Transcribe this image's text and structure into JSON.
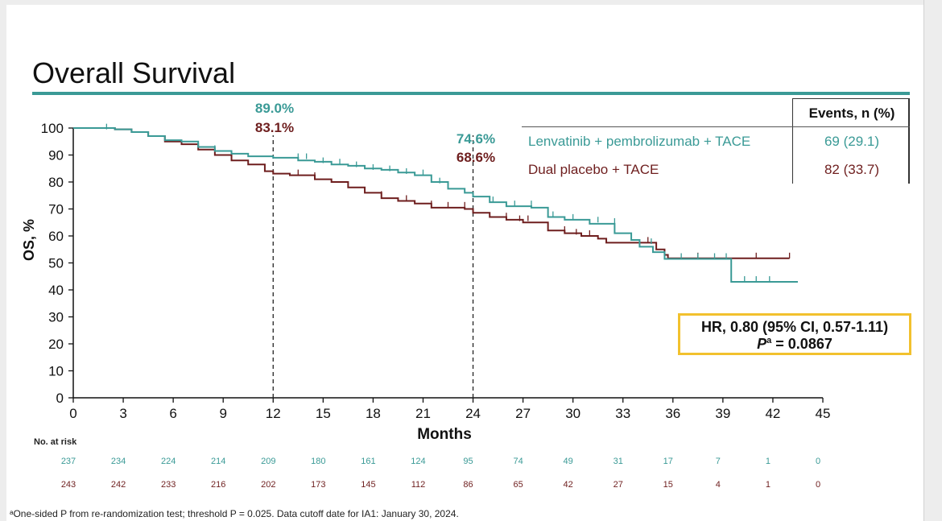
{
  "page_title": "Overall Survival",
  "colors": {
    "lenvatinib": "#3a9a96",
    "placebo": "#6e1e1e",
    "accent_rule": "#3a9a96",
    "hr_box": "#f2c12e"
  },
  "legend": {
    "header": "Events, n (%)",
    "rows": [
      {
        "name": "Lenvatinib + pembrolizumab + TACE",
        "events": "69 (29.1)"
      },
      {
        "name": "Dual placebo + TACE",
        "events": "82 (33.7)"
      }
    ]
  },
  "annotations": {
    "m12_a": "89.0%",
    "m12_b": "83.1%",
    "m24_a": "74.6%",
    "m24_b": "68.6%"
  },
  "hr_box": {
    "line1": "HR, 0.80 (95% CI, 0.57-1.11)",
    "p_sup": "a",
    "p_value": " = 0.0867"
  },
  "risk_table": {
    "title": "No. at risk",
    "lenvatinib": [
      "237",
      "234",
      "224",
      "214",
      "209",
      "180",
      "161",
      "124",
      "95",
      "74",
      "49",
      "31",
      "17",
      "7",
      "1",
      "0"
    ],
    "placebo": [
      "243",
      "242",
      "233",
      "216",
      "202",
      "173",
      "145",
      "112",
      "86",
      "65",
      "42",
      "27",
      "15",
      "4",
      "1",
      "0"
    ]
  },
  "footnote": "ᵃOne-sided P from re-randomization test; threshold P = 0.025. Data cutoff date for IA1: January 30, 2024.",
  "chart_data": {
    "type": "line",
    "title": "Overall Survival",
    "xlabel": "Months",
    "ylabel": "OS, %",
    "xlim": [
      0,
      45
    ],
    "ylim": [
      0,
      100
    ],
    "xticks": [
      0,
      3,
      6,
      9,
      12,
      15,
      18,
      21,
      24,
      27,
      30,
      33,
      36,
      39,
      42,
      45
    ],
    "yticks": [
      0,
      10,
      20,
      30,
      40,
      50,
      60,
      70,
      80,
      90,
      100
    ],
    "reference_lines_x": [
      12,
      24
    ],
    "series": [
      {
        "name": "Lenvatinib + pembrolizumab + TACE",
        "step": [
          [
            0,
            100
          ],
          [
            1.5,
            100
          ],
          [
            2.5,
            99.5
          ],
          [
            3.5,
            98.5
          ],
          [
            4.5,
            97
          ],
          [
            5.5,
            95.5
          ],
          [
            6.5,
            95
          ],
          [
            7.5,
            93
          ],
          [
            8.5,
            91.5
          ],
          [
            9.5,
            90.5
          ],
          [
            10.5,
            89.5
          ],
          [
            12,
            89
          ],
          [
            13.5,
            88
          ],
          [
            14.5,
            87.5
          ],
          [
            15.5,
            86.5
          ],
          [
            16.5,
            86
          ],
          [
            17.5,
            85
          ],
          [
            18.5,
            84.5
          ],
          [
            19.5,
            83.5
          ],
          [
            20.5,
            82.5
          ],
          [
            21.5,
            80
          ],
          [
            22.5,
            77.5
          ],
          [
            23.5,
            76
          ],
          [
            24,
            74.6
          ],
          [
            25,
            72.5
          ],
          [
            26,
            71
          ],
          [
            27.5,
            70.5
          ],
          [
            28.5,
            67
          ],
          [
            29.5,
            66
          ],
          [
            31,
            64.5
          ],
          [
            32.5,
            61
          ],
          [
            33.5,
            58.5
          ],
          [
            34,
            56
          ],
          [
            34.8,
            54
          ],
          [
            35.5,
            51.5
          ],
          [
            39.5,
            51.5
          ],
          [
            39.5,
            43
          ],
          [
            43.5,
            43
          ]
        ],
        "censors": [
          [
            2,
            99.5
          ],
          [
            8.5,
            91.5
          ],
          [
            13.5,
            88.5
          ],
          [
            14,
            88.5
          ],
          [
            15,
            87
          ],
          [
            16,
            86.5
          ],
          [
            17,
            85.5
          ],
          [
            18,
            84.5
          ],
          [
            19,
            84
          ],
          [
            20,
            83
          ],
          [
            21,
            82.5
          ],
          [
            22,
            79.5
          ],
          [
            25.2,
            72.5
          ],
          [
            26.5,
            71
          ],
          [
            27.5,
            71
          ],
          [
            28.8,
            67
          ],
          [
            30,
            66
          ],
          [
            31.5,
            65
          ],
          [
            32.5,
            64.5
          ],
          [
            34.7,
            57
          ],
          [
            36.5,
            51.5
          ],
          [
            37.5,
            51.5
          ],
          [
            38.5,
            51.5
          ],
          [
            39.2,
            51.5
          ],
          [
            40.3,
            43
          ],
          [
            41,
            43
          ],
          [
            41.8,
            43
          ]
        ]
      },
      {
        "name": "Dual placebo + TACE",
        "step": [
          [
            0,
            100
          ],
          [
            2.5,
            99.5
          ],
          [
            3.5,
            98.5
          ],
          [
            4.5,
            97
          ],
          [
            5.5,
            95
          ],
          [
            6.5,
            94
          ],
          [
            7.5,
            92
          ],
          [
            8.5,
            90
          ],
          [
            9.5,
            88
          ],
          [
            10.5,
            86.5
          ],
          [
            11.5,
            84
          ],
          [
            12,
            83.1
          ],
          [
            13,
            82.5
          ],
          [
            14.5,
            81
          ],
          [
            15.5,
            80
          ],
          [
            16.5,
            78
          ],
          [
            17.5,
            76
          ],
          [
            18.5,
            74
          ],
          [
            19.5,
            73
          ],
          [
            20.5,
            72
          ],
          [
            21.5,
            70.5
          ],
          [
            23.5,
            70
          ],
          [
            24,
            68.6
          ],
          [
            25,
            67
          ],
          [
            26,
            66
          ],
          [
            27,
            65
          ],
          [
            28.5,
            62
          ],
          [
            29.5,
            61
          ],
          [
            30.5,
            60
          ],
          [
            31.5,
            59
          ],
          [
            32,
            57.5
          ],
          [
            35,
            55
          ],
          [
            35.5,
            53
          ],
          [
            35.7,
            51.7
          ],
          [
            43,
            51.7
          ]
        ],
        "censors": [
          [
            13.5,
            82.5
          ],
          [
            14.5,
            81.5
          ],
          [
            18.5,
            74.5
          ],
          [
            20,
            73
          ],
          [
            21.5,
            71
          ],
          [
            22.5,
            70.5
          ],
          [
            23.5,
            70.5
          ],
          [
            26,
            66.5
          ],
          [
            26.8,
            65.5
          ],
          [
            27.3,
            65.5
          ],
          [
            29.5,
            61.5
          ],
          [
            30.2,
            60.5
          ],
          [
            31,
            60
          ],
          [
            34.5,
            57.5
          ],
          [
            37.5,
            51.7
          ],
          [
            41,
            51.7
          ],
          [
            43,
            51.7
          ]
        ]
      }
    ]
  }
}
